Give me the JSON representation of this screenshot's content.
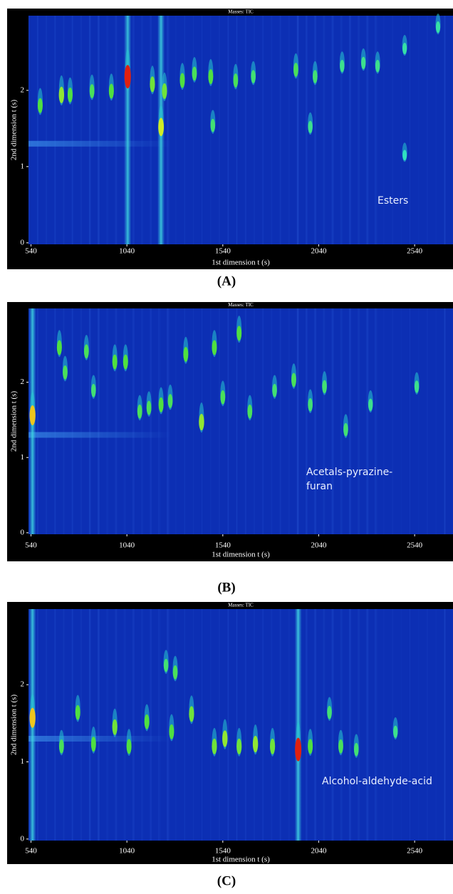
{
  "chart_data": [
    {
      "type": "heatmap",
      "title": "Masses: TIC",
      "xlabel": "1st dimension t (s)",
      "ylabel": "2nd dimension t (s)",
      "annotation": [
        "Esters"
      ],
      "panel_label": "(A)",
      "xlim": [
        527,
        2740
      ],
      "ylim": [
        -0.02,
        2.98
      ],
      "xticks": [
        540,
        1040,
        1540,
        2040,
        2540
      ],
      "yticks": [
        0,
        1,
        2
      ],
      "background": "#0c2fb4",
      "colormap": [
        "#1aa0e8",
        "#30e0c0",
        "#50e040",
        "#f0f020",
        "#e02010"
      ],
      "bands": {
        "x": [
          1044,
          1218
        ]
      },
      "peaks": {
        "x": [
          588,
          699,
          744,
          858,
          959,
          1044,
          1173,
          1218,
          1236,
          1329,
          1392,
          1477,
          1488,
          1607,
          1699,
          1921,
          1996,
          2021,
          2162,
          2273,
          2347,
          2488,
          2662,
          2488
        ],
        "y": [
          1.8,
          1.94,
          1.94,
          1.99,
          1.99,
          2.18,
          2.08,
          1.52,
          1.99,
          2.13,
          2.22,
          2.18,
          1.54,
          2.13,
          2.18,
          2.27,
          1.52,
          2.18,
          2.32,
          2.36,
          2.32,
          2.55,
          2.83,
          1.15
        ],
        "z": [
          0.5,
          0.6,
          0.5,
          0.45,
          0.5,
          1,
          0.55,
          0.7,
          0.55,
          0.5,
          0.45,
          0.5,
          0.4,
          0.45,
          0.4,
          0.45,
          0.35,
          0.4,
          0.35,
          0.35,
          0.35,
          0.3,
          0.3,
          0.25
        ]
      }
    },
    {
      "type": "heatmap",
      "title": "Masses: TIC",
      "xlabel": "1st dimension t (s)",
      "ylabel": "2nd dimension t (s)",
      "annotation": [
        "Acetals-pyrazine-",
        "furan"
      ],
      "panel_label": "(B)",
      "xlim": [
        527,
        2740
      ],
      "ylim": [
        -0.02,
        2.98
      ],
      "xticks": [
        540,
        1040,
        1540,
        2040,
        2540
      ],
      "yticks": [
        0,
        1,
        2
      ],
      "background": "#0c2fb4",
      "colormap": [
        "#1aa0e8",
        "#30e0c0",
        "#50e040",
        "#f0f020",
        "#e02010"
      ],
      "bands": {
        "x": [
          548
        ]
      },
      "peaks": {
        "x": [
          548,
          688,
          718,
          829,
          866,
          977,
          1033,
          1107,
          1155,
          1218,
          1266,
          1347,
          1429,
          1496,
          1540,
          1625,
          1681,
          1810,
          1910,
          1996,
          2070,
          2181,
          2310,
          2551
        ],
        "y": [
          1.56,
          2.46,
          2.13,
          2.41,
          1.89,
          2.27,
          2.27,
          1.61,
          1.66,
          1.7,
          1.75,
          2.37,
          1.47,
          2.46,
          1.8,
          2.65,
          1.61,
          1.89,
          2.03,
          1.7,
          1.94,
          1.37,
          1.7,
          1.94
        ],
        "z": [
          0.8,
          0.5,
          0.45,
          0.45,
          0.4,
          0.5,
          0.5,
          0.45,
          0.45,
          0.5,
          0.45,
          0.5,
          0.6,
          0.5,
          0.45,
          0.5,
          0.45,
          0.4,
          0.45,
          0.4,
          0.4,
          0.4,
          0.35,
          0.35
        ]
      }
    },
    {
      "type": "heatmap",
      "title": "Masses: TIC",
      "xlabel": "1st dimension t (s)",
      "ylabel": "2nd dimension t (s)",
      "annotation": [
        "Alcohol-aldehyde-acid"
      ],
      "panel_label": "(C)",
      "xlim": [
        527,
        2740
      ],
      "ylim": [
        -0.02,
        2.98
      ],
      "xticks": [
        540,
        1040,
        1540,
        2040,
        2540
      ],
      "yticks": [
        0,
        1,
        2
      ],
      "background": "#0c2fb4",
      "colormap": [
        "#1aa0e8",
        "#30e0c0",
        "#50e040",
        "#f0f020",
        "#e02010"
      ],
      "bands": {
        "x": [
          548,
          1933
        ]
      },
      "peaks": {
        "x": [
          548,
          699,
          784,
          866,
          977,
          1051,
          1144,
          1273,
          1377,
          1496,
          1551,
          1625,
          1710,
          1799,
          1933,
          1996,
          2096,
          2155,
          2236,
          2440,
          1292,
          1244
        ],
        "y": [
          1.57,
          1.2,
          1.64,
          1.23,
          1.45,
          1.2,
          1.52,
          1.39,
          1.62,
          1.2,
          1.3,
          1.2,
          1.23,
          1.2,
          1.16,
          1.2,
          1.64,
          1.2,
          1.16,
          1.39,
          2.16,
          2.25
        ],
        "z": [
          0.8,
          0.45,
          0.5,
          0.5,
          0.55,
          0.5,
          0.5,
          0.5,
          0.55,
          0.55,
          0.6,
          0.55,
          0.6,
          0.55,
          1,
          0.5,
          0.4,
          0.45,
          0.4,
          0.35,
          0.45,
          0.4
        ]
      }
    }
  ]
}
